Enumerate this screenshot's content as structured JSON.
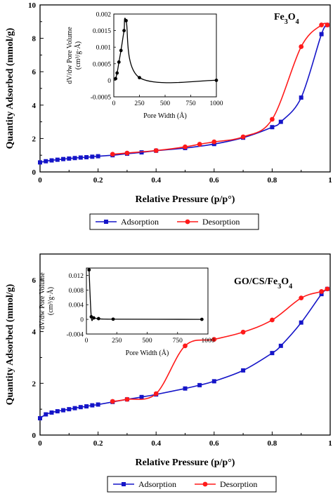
{
  "colors": {
    "adsorption": "#1515c8",
    "desorption": "#ff1a1a",
    "inset": "#000000",
    "frame": "#000000"
  },
  "chart_data": [
    {
      "type": "line",
      "sample_label_main": "Fe",
      "sample_label_sub1": "3",
      "sample_label_mid": "O",
      "sample_label_sub2": "4",
      "xlabel": "Relative Pressure (p/p°)",
      "ylabel": "Quantity Adsorbed (mmol/g)",
      "xlim": [
        0,
        1
      ],
      "ylim": [
        0,
        10
      ],
      "xticks": [
        "0",
        "0.2",
        "0.4",
        "0.6",
        "0.8",
        "1"
      ],
      "yticks": [
        "0",
        "2",
        "4",
        "6",
        "8",
        "10"
      ],
      "legend": [
        "Adsorption",
        "Desorption"
      ],
      "series": [
        {
          "name": "Adsorption",
          "x": [
            0.0,
            0.02,
            0.04,
            0.06,
            0.08,
            0.1,
            0.12,
            0.14,
            0.16,
            0.18,
            0.2,
            0.25,
            0.3,
            0.35,
            0.4,
            0.5,
            0.6,
            0.7,
            0.8,
            0.83,
            0.9,
            0.97,
            0.99
          ],
          "y": [
            0.57,
            0.64,
            0.69,
            0.73,
            0.77,
            0.8,
            0.83,
            0.86,
            0.88,
            0.91,
            0.94,
            1.0,
            1.09,
            1.17,
            1.27,
            1.43,
            1.67,
            2.05,
            2.68,
            3.0,
            4.45,
            8.25,
            8.8
          ]
        },
        {
          "name": "Desorption",
          "x": [
            0.99,
            0.97,
            0.9,
            0.8,
            0.7,
            0.6,
            0.55,
            0.5,
            0.4,
            0.3,
            0.25
          ],
          "y": [
            8.8,
            8.8,
            7.5,
            3.15,
            2.1,
            1.8,
            1.66,
            1.5,
            1.28,
            1.13,
            1.06
          ]
        }
      ],
      "inset": {
        "xlabel": "Pore Width (Å)",
        "ylabel_line1": "dV/dw Pore Volume",
        "ylabel_line2": "(cm³/g·Å)",
        "xlim": [
          0,
          1000
        ],
        "ylim": [
          -0.0005,
          0.002
        ],
        "xticks": [
          "0",
          "250",
          "500",
          "750",
          "1000"
        ],
        "yticks": [
          "-0.0005",
          "0",
          "0.0005",
          "0.001",
          "0.0015",
          "0.002"
        ],
        "x": [
          18,
          32,
          50,
          70,
          100,
          120,
          250,
          1000
        ],
        "y": [
          5e-05,
          0.00022,
          0.00055,
          0.0009,
          0.0015,
          0.0018,
          8e-05,
          0.0
        ]
      }
    },
    {
      "type": "line",
      "sample_label_main": "GO/CS/Fe",
      "sample_label_sub1": "3",
      "sample_label_mid": "O",
      "sample_label_sub2": "4",
      "xlabel": "Relative Pressure (p/p°)",
      "ylabel": "Quantity Adsorbed (mmol/g)",
      "xlim": [
        0,
        1
      ],
      "ylim": [
        0,
        7
      ],
      "xticks": [
        "0",
        "0.2",
        "0.4",
        "0.6",
        "0.8",
        "1"
      ],
      "yticks": [
        "0",
        "2",
        "4",
        "6"
      ],
      "legend": [
        "Adsorption",
        "Desorption"
      ],
      "series": [
        {
          "name": "Adsorption",
          "x": [
            0.0,
            0.02,
            0.04,
            0.06,
            0.08,
            0.1,
            0.12,
            0.14,
            0.16,
            0.18,
            0.2,
            0.25,
            0.3,
            0.35,
            0.4,
            0.5,
            0.55,
            0.6,
            0.7,
            0.8,
            0.83,
            0.9,
            0.97,
            0.99
          ],
          "y": [
            0.65,
            0.8,
            0.87,
            0.92,
            0.96,
            1.0,
            1.04,
            1.08,
            1.11,
            1.15,
            1.18,
            1.28,
            1.38,
            1.47,
            1.57,
            1.8,
            1.93,
            2.08,
            2.5,
            3.17,
            3.45,
            4.35,
            5.45,
            5.65
          ]
        },
        {
          "name": "Desorption",
          "x": [
            0.99,
            0.97,
            0.9,
            0.8,
            0.7,
            0.6,
            0.5,
            0.4,
            0.3,
            0.25
          ],
          "y": [
            5.65,
            5.55,
            5.3,
            4.45,
            3.98,
            3.7,
            3.45,
            1.6,
            1.38,
            1.3
          ]
        }
      ],
      "inset": {
        "xlabel": "Pore Width (Å)",
        "ylabel_line1": "dV/dw Pore Volume",
        "ylabel_line2": "(cm³/g·Å)",
        "xlim": [
          0,
          1000
        ],
        "ylim": [
          -0.004,
          0.014
        ],
        "xticks": [
          "0",
          "250",
          "500",
          "750",
          "1000"
        ],
        "yticks": [
          "-0.004",
          "0",
          "0.004",
          "0.008",
          "0.012"
        ],
        "x": [
          22,
          40,
          60,
          100,
          220,
          950
        ],
        "y": [
          0.0135,
          0.0007,
          0.0004,
          0.0002,
          5e-05,
          0.0
        ]
      }
    }
  ]
}
